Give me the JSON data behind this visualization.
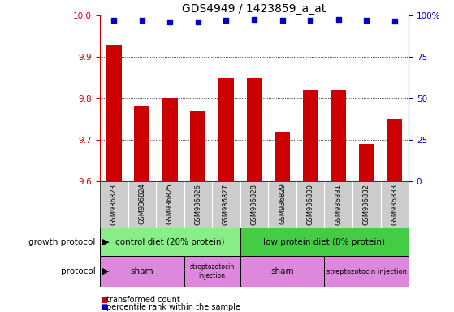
{
  "title": "GDS4949 / 1423859_a_at",
  "samples": [
    "GSM936823",
    "GSM936824",
    "GSM936825",
    "GSM936826",
    "GSM936827",
    "GSM936828",
    "GSM936829",
    "GSM936830",
    "GSM936831",
    "GSM936832",
    "GSM936833"
  ],
  "bar_values": [
    9.93,
    9.78,
    9.8,
    9.77,
    9.85,
    9.85,
    9.72,
    9.82,
    9.82,
    9.69,
    9.75
  ],
  "percentile_values": [
    97,
    97,
    96,
    96,
    97,
    97.5,
    97,
    97,
    97.5,
    97,
    96.5
  ],
  "bar_color": "#cc0000",
  "dot_color": "#0000cc",
  "ylim_left": [
    9.6,
    10.0
  ],
  "ylim_right": [
    0,
    100
  ],
  "yticks_left": [
    9.6,
    9.7,
    9.8,
    9.9,
    10.0
  ],
  "yticks_right": [
    0,
    25,
    50,
    75,
    100
  ],
  "ytick_right_labels": [
    "0",
    "25",
    "50",
    "75",
    "100%"
  ],
  "grid_values": [
    9.7,
    9.8,
    9.9
  ],
  "growth_protocol_label": "growth protocol",
  "protocol_label": "protocol",
  "group1_label": "control diet (20% protein)",
  "group2_label": "low protein diet (8% protein)",
  "group1_color": "#88ee88",
  "group2_color": "#44cc44",
  "proto1a_label": "sham",
  "proto1b_label": "streptozotocin\ninjection",
  "proto2a_label": "sham",
  "proto2b_label": "streptozotocin injection",
  "proto_color": "#dd88dd",
  "legend_bar_label": "transformed count",
  "legend_dot_label": "percentile rank within the sample",
  "bg_color": "#ffffff",
  "tick_color_left": "#cc0000",
  "tick_color_right": "#0000bb",
  "label_color_left": "#cc0000",
  "spine_color_left": "#cc0000",
  "spine_color_right": "#0000bb"
}
